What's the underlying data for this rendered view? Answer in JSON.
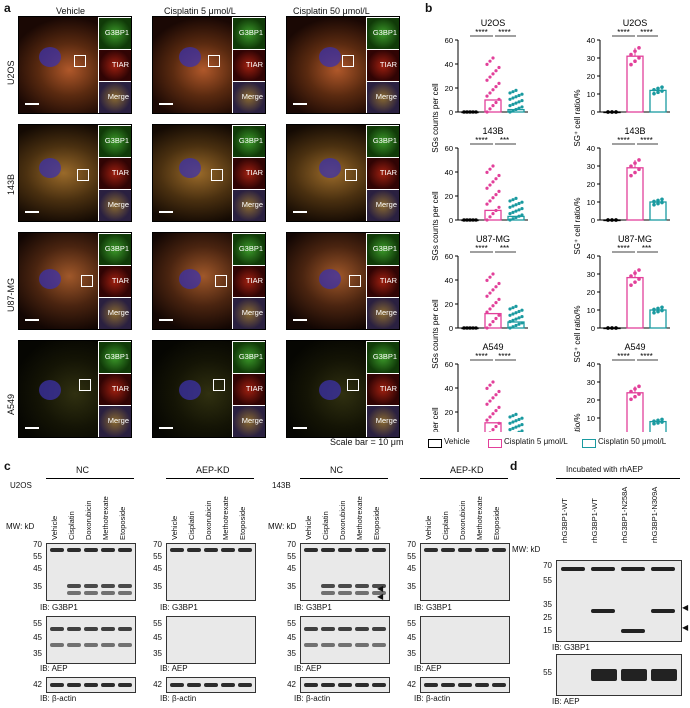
{
  "panel_a": {
    "label": "a",
    "columns": [
      "Vehicle",
      "Cisplatin 5 μmol/L",
      "Cisplatin 50 μmol/L"
    ],
    "rows": [
      "U2OS",
      "143B",
      "U87-MG",
      "A549"
    ],
    "insets": [
      "G3BP1",
      "TIAR",
      "Merge"
    ],
    "scale_bar": "Scale bar = 10 μm"
  },
  "panel_b": {
    "label": "b",
    "legend": [
      "Vehicle",
      "Cisplatin 5 μmol/L",
      "Cisplatin 50 μmol/L"
    ],
    "colors": {
      "vehicle": "#000000",
      "cis5": "#e2409a",
      "cis50": "#1a9aa0"
    },
    "ylabel_left": "SGs counts per cell",
    "ylabel_right": "SG⁺ cell ratio/%",
    "sig": [
      "****",
      "***"
    ]
  },
  "chart_data": [
    {
      "type": "scatter",
      "title": "U2OS",
      "ylabel": "SGs counts per cell",
      "ylim": [
        0,
        60
      ],
      "yticks": [
        0,
        20,
        40,
        60
      ],
      "series": [
        {
          "name": "Vehicle",
          "values": [
            0
          ]
        },
        {
          "name": "Cisplatin 5 μmol/L",
          "values": [
            10
          ]
        },
        {
          "name": "Cisplatin 50 μmol/L",
          "values": [
            2
          ]
        }
      ],
      "sig": [
        "****",
        "****"
      ]
    },
    {
      "type": "bar",
      "title": "U2OS",
      "ylabel": "SG⁺ cell ratio/%",
      "ylim": [
        0,
        40
      ],
      "yticks": [
        0,
        10,
        20,
        30,
        40
      ],
      "series": [
        {
          "name": "Vehicle",
          "values": [
            0
          ]
        },
        {
          "name": "Cisplatin 5 μmol/L",
          "values": [
            31
          ]
        },
        {
          "name": "Cisplatin 50 μmol/L",
          "values": [
            12
          ]
        }
      ],
      "sig": [
        "****",
        "****"
      ]
    },
    {
      "type": "scatter",
      "title": "143B",
      "ylabel": "SGs counts per cell",
      "ylim": [
        0,
        60
      ],
      "yticks": [
        0,
        20,
        40,
        60
      ],
      "series": [
        {
          "name": "Vehicle",
          "values": [
            0
          ]
        },
        {
          "name": "Cisplatin 5 μmol/L",
          "values": [
            8
          ]
        },
        {
          "name": "Cisplatin 50 μmol/L",
          "values": [
            3
          ]
        }
      ],
      "sig": [
        "****",
        "***"
      ]
    },
    {
      "type": "bar",
      "title": "143B",
      "ylabel": "SG⁺ cell ratio/%",
      "ylim": [
        0,
        40
      ],
      "yticks": [
        0,
        10,
        20,
        30,
        40
      ],
      "series": [
        {
          "name": "Vehicle",
          "values": [
            0
          ]
        },
        {
          "name": "Cisplatin 5 μmol/L",
          "values": [
            29
          ]
        },
        {
          "name": "Cisplatin 50 μmol/L",
          "values": [
            10
          ]
        }
      ],
      "sig": [
        "****",
        "****"
      ]
    },
    {
      "type": "scatter",
      "title": "U87-MG",
      "ylabel": "SGs counts per cell",
      "ylim": [
        0,
        60
      ],
      "yticks": [
        0,
        20,
        40,
        60
      ],
      "series": [
        {
          "name": "Vehicle",
          "values": [
            0
          ]
        },
        {
          "name": "Cisplatin 5 μmol/L",
          "values": [
            12
          ]
        },
        {
          "name": "Cisplatin 50 μmol/L",
          "values": [
            5
          ]
        }
      ],
      "sig": [
        "****",
        "***"
      ]
    },
    {
      "type": "bar",
      "title": "U87-MG",
      "ylabel": "SG⁺ cell ratio/%",
      "ylim": [
        0,
        40
      ],
      "yticks": [
        0,
        10,
        20,
        30,
        40
      ],
      "series": [
        {
          "name": "Vehicle",
          "values": [
            0
          ]
        },
        {
          "name": "Cisplatin 5 μmol/L",
          "values": [
            28
          ]
        },
        {
          "name": "Cisplatin 50 μmol/L",
          "values": [
            10
          ]
        }
      ],
      "sig": [
        "****",
        "***"
      ]
    },
    {
      "type": "scatter",
      "title": "A549",
      "ylabel": "SGs counts per cell",
      "ylim": [
        0,
        60
      ],
      "yticks": [
        0,
        20,
        40,
        60
      ],
      "series": [
        {
          "name": "Vehicle",
          "values": [
            0
          ]
        },
        {
          "name": "Cisplatin 5 μmol/L",
          "values": [
            11
          ]
        },
        {
          "name": "Cisplatin 50 μmol/L",
          "values": [
            2
          ]
        }
      ],
      "sig": [
        "****",
        "****"
      ]
    },
    {
      "type": "bar",
      "title": "A549",
      "ylabel": "SG⁺ cell ratio/%",
      "ylim": [
        0,
        40
      ],
      "yticks": [
        0,
        10,
        20,
        30,
        40
      ],
      "series": [
        {
          "name": "Vehicle",
          "values": [
            0
          ]
        },
        {
          "name": "Cisplatin 5 μmol/L",
          "values": [
            24
          ]
        },
        {
          "name": "Cisplatin 50 μmol/L",
          "values": [
            8
          ]
        }
      ],
      "sig": [
        "****",
        "****"
      ]
    }
  ],
  "panel_c": {
    "label": "c",
    "cell_lines": [
      "U2OS",
      "143B"
    ],
    "groups": [
      "NC",
      "AEP-KD",
      "NC",
      "AEP-KD"
    ],
    "lanes": [
      "Vehicle",
      "Cisplatin",
      "Doxorubicin",
      "Methotrexate",
      "Etoposide"
    ],
    "mw_label": "MW: kD",
    "mw_top": [
      "70",
      "55",
      "45",
      "35"
    ],
    "mw_mid": [
      "55",
      "45",
      "35"
    ],
    "mw_bot": [
      "42"
    ],
    "ib": [
      "IB: G3BP1",
      "IB: AEP",
      "IB: β-actin"
    ]
  },
  "panel_d": {
    "label": "d",
    "title": "Incubated with rhAEP",
    "lanes": [
      "rhG3BP1-WT",
      "rhG3BP1-WT",
      "rhG3BP1-N258A",
      "rhG3BP1-N309A"
    ],
    "mw_label": "MW: kD",
    "mw_top": [
      "70",
      "55",
      "35",
      "25",
      "15"
    ],
    "mw_bot": [
      "55"
    ],
    "ib": [
      "IB: G3BP1",
      "IB: AEP"
    ]
  }
}
